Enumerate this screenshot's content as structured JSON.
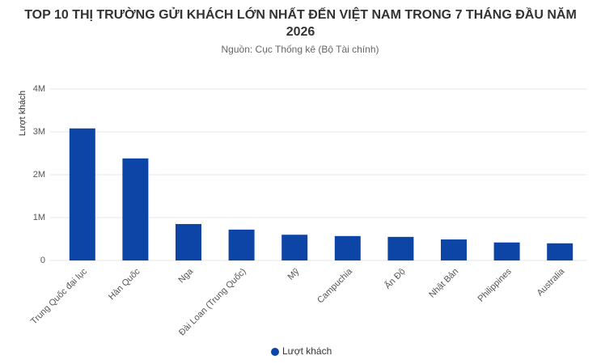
{
  "chart_data": {
    "type": "bar",
    "title": "TOP 10 THỊ TRƯỜNG GỬI KHÁCH LỚN NHẤT ĐẾN VIỆT NAM TRONG 7 THÁNG ĐẦU NĂM 2026",
    "subtitle": "Nguồn: Cục Thống kê (Bộ Tài chính)",
    "y_label": "Lượt khách",
    "categories": [
      "Trung Quốc đại lục",
      "Hàn Quốc",
      "Nga",
      "Đài Loan (Trung Quốc)",
      "Mỹ",
      "Campuchia",
      "Ấn Độ",
      "Nhật Bản",
      "Philippines",
      "Australia"
    ],
    "series": [
      {
        "name": "Lượt khách",
        "color": "#0c45a6",
        "values": [
          3080000,
          2380000,
          850000,
          720000,
          600000,
          570000,
          550000,
          490000,
          420000,
          400000
        ]
      }
    ],
    "ylim": [
      0,
      4000000
    ],
    "yticks": [
      0,
      {
        "value": 1000000,
        "label": "1M"
      },
      {
        "value": 2000000,
        "label": "2M"
      },
      {
        "value": 3000000,
        "label": "3M"
      },
      {
        "value": 4000000,
        "label": "4M"
      }
    ],
    "grid": true,
    "legend": "bottom"
  }
}
